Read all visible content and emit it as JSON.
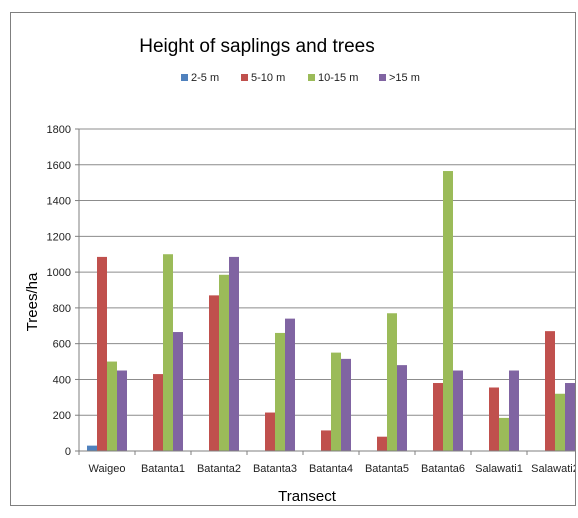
{
  "chart_data": {
    "type": "bar",
    "title": "Height of saplings and trees",
    "xlabel": "Transect",
    "ylabel": "Trees/ha",
    "ylim": [
      0,
      1800
    ],
    "yticks": [
      0,
      200,
      400,
      600,
      800,
      1000,
      1200,
      1400,
      1600,
      1800
    ],
    "grid": true,
    "legend_position": "top",
    "categories": [
      "Waigeo",
      "Batanta1",
      "Batanta2",
      "Batanta3",
      "Batanta4",
      "Batanta5",
      "Batanta6",
      "Salawati1",
      "Salawati2"
    ],
    "series": [
      {
        "name": "2-5 m",
        "color": "#4f81bd",
        "values": [
          30,
          0,
          0,
          0,
          0,
          0,
          0,
          0,
          0
        ]
      },
      {
        "name": "5-10 m",
        "color": "#c0504d",
        "values": [
          1085,
          430,
          870,
          215,
          115,
          80,
          380,
          355,
          670
        ]
      },
      {
        "name": "10-15 m",
        "color": "#9bbb59",
        "values": [
          500,
          1100,
          985,
          660,
          550,
          770,
          1565,
          185,
          320
        ]
      },
      {
        "name": ">15 m",
        "color": "#8064a2",
        "values": [
          450,
          665,
          1085,
          740,
          515,
          480,
          450,
          450,
          380
        ]
      }
    ]
  }
}
